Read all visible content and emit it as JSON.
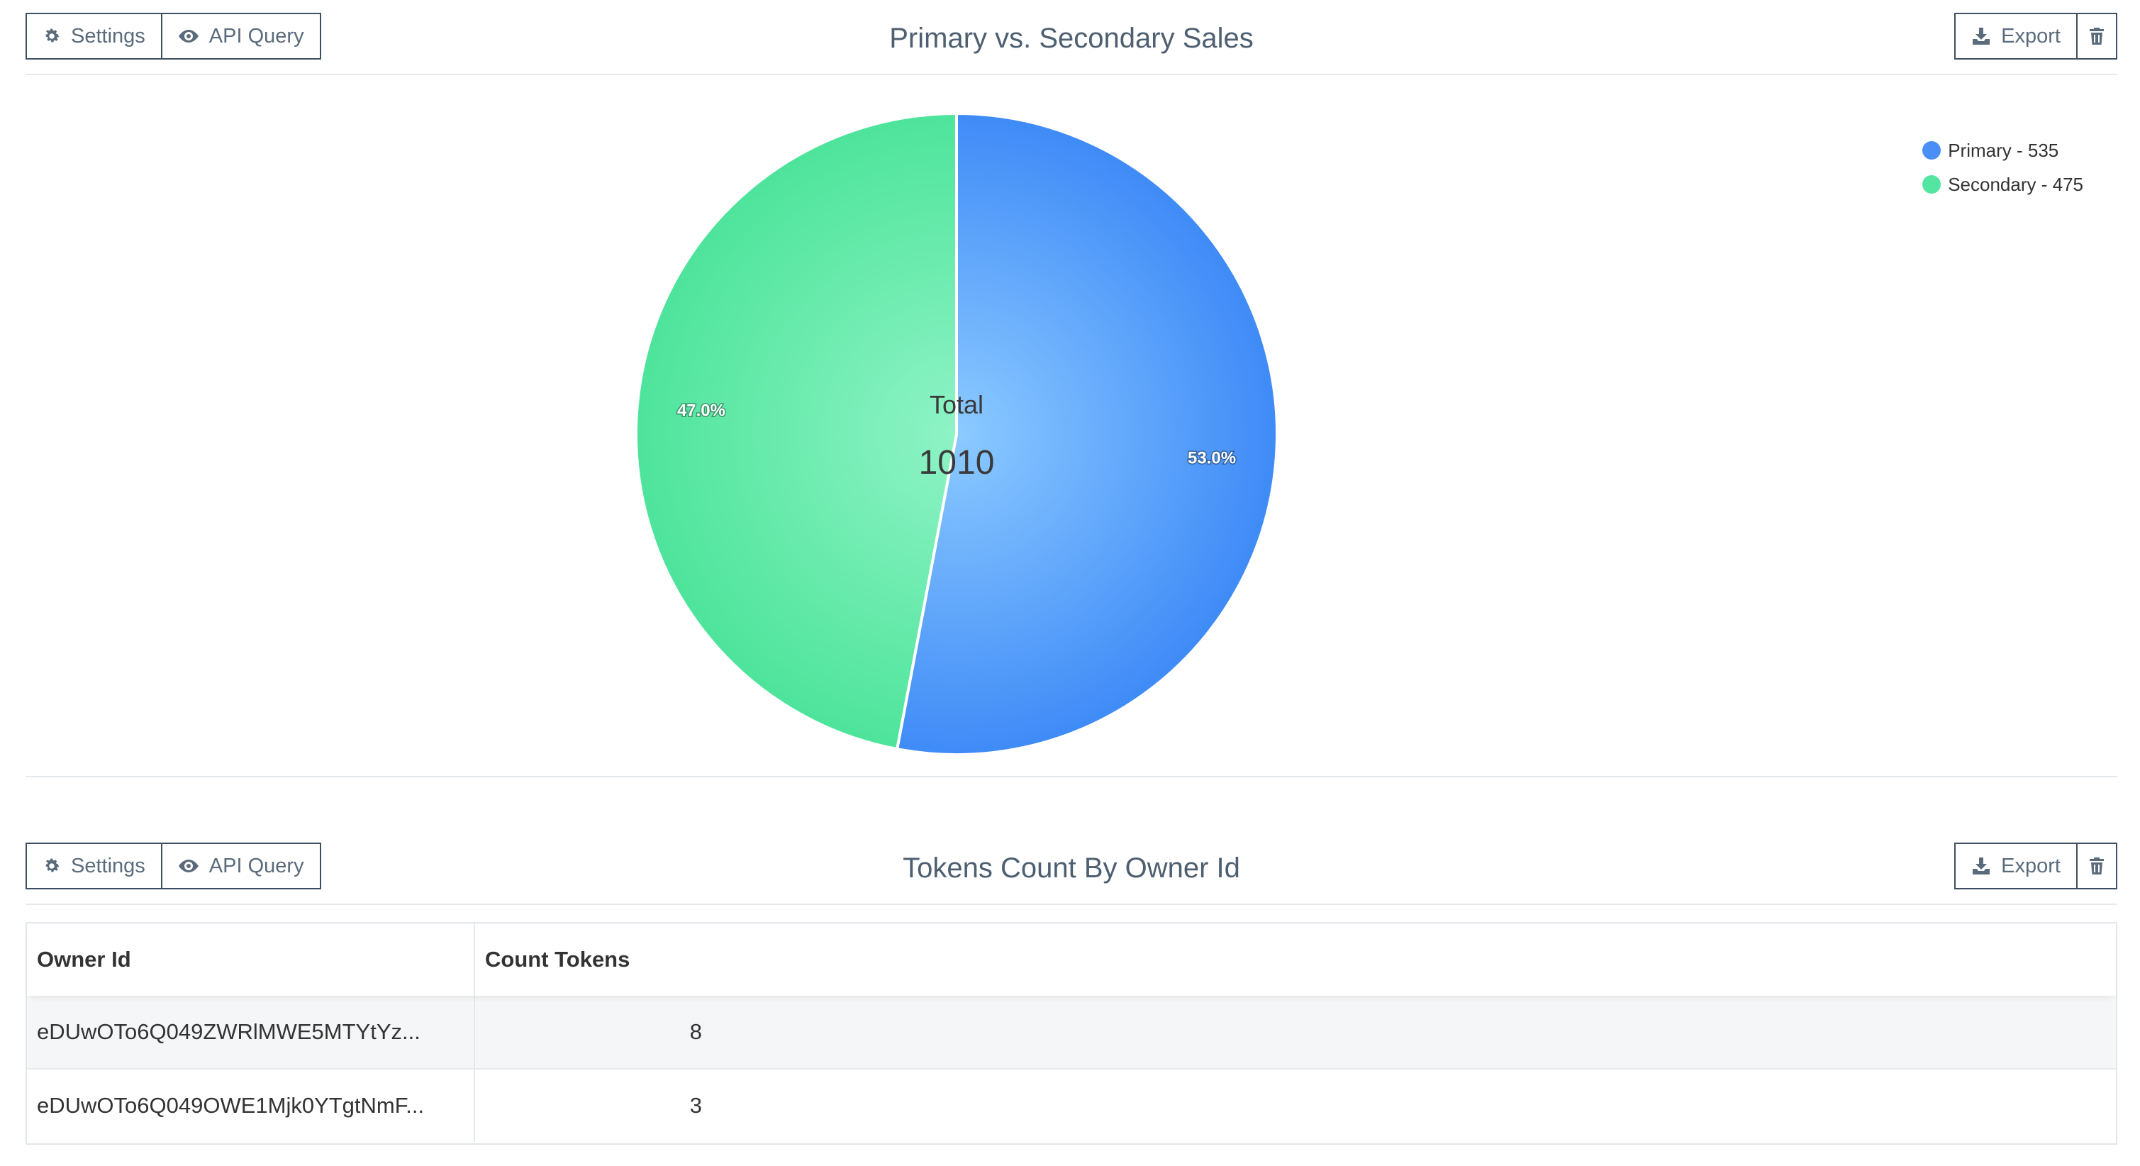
{
  "panels": {
    "pie": {
      "toolbar": {
        "settings_label": "Settings",
        "api_query_label": "API Query",
        "export_label": "Export"
      },
      "title": "Primary vs. Secondary Sales",
      "center_title": "Total",
      "center_value": "1010",
      "legend": [
        "Primary - 535",
        "Secondary - 475"
      ],
      "slice_labels": [
        "53.0%",
        "47.0%"
      ]
    },
    "table": {
      "toolbar": {
        "settings_label": "Settings",
        "api_query_label": "API Query",
        "export_label": "Export"
      },
      "title": "Tokens Count By Owner Id",
      "columns": [
        "Owner Id",
        "Count Tokens"
      ],
      "rows": [
        {
          "owner_id": "eDUwOTo6Q049ZWRlMWE5MTYtYz...",
          "count": "8"
        },
        {
          "owner_id": "eDUwOTo6Q049OWE1Mjk0YTgtNmF...",
          "count": "3"
        }
      ]
    }
  },
  "chart_data": {
    "type": "pie",
    "title": "Primary vs. Secondary Sales",
    "categories": [
      "Primary",
      "Secondary"
    ],
    "values": [
      535,
      475
    ],
    "percentages": [
      53.0,
      47.0
    ],
    "total": 1010,
    "colors": [
      "#4a8ff5",
      "#52e6a0"
    ],
    "legend_position": "top-right"
  }
}
